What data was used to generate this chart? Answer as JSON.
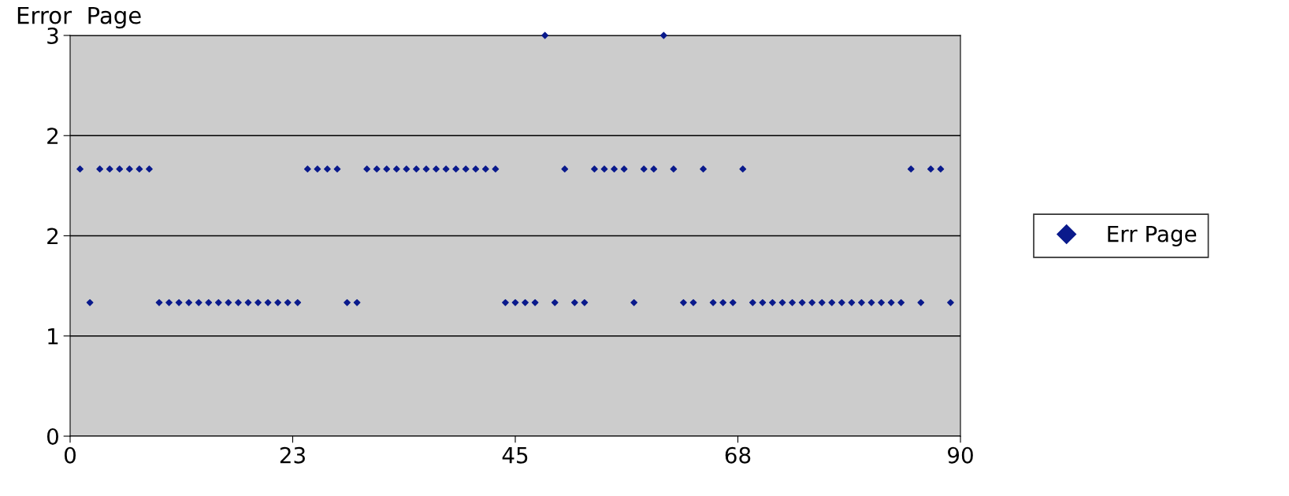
{
  "chart_data": {
    "type": "scatter",
    "title": "Error  Page",
    "x": [
      1,
      2,
      3,
      4,
      5,
      6,
      7,
      8,
      9,
      10,
      11,
      12,
      13,
      14,
      15,
      16,
      17,
      18,
      19,
      20,
      21,
      22,
      23,
      24,
      25,
      26,
      27,
      28,
      29,
      30,
      31,
      32,
      33,
      34,
      35,
      36,
      37,
      38,
      39,
      40,
      41,
      42,
      43,
      44,
      45,
      46,
      47,
      48,
      49,
      50,
      51,
      52,
      53,
      54,
      55,
      56,
      57,
      58,
      59,
      60,
      61,
      62,
      63,
      64,
      65,
      66,
      67,
      68,
      69,
      70,
      71,
      72,
      73,
      74,
      75,
      76,
      77,
      78,
      79,
      80,
      81,
      82,
      83,
      84,
      85,
      86,
      87,
      88,
      89
    ],
    "series": [
      {
        "name": "Err Page",
        "color": "#0a1a8c",
        "values": [
          2,
          1,
          2,
          2,
          2,
          2,
          2,
          2,
          1,
          1,
          1,
          1,
          1,
          1,
          1,
          1,
          1,
          1,
          1,
          1,
          1,
          1,
          1,
          2,
          2,
          2,
          2,
          1,
          1,
          2,
          2,
          2,
          2,
          2,
          2,
          2,
          2,
          2,
          2,
          2,
          2,
          2,
          2,
          1,
          1,
          1,
          1,
          3,
          1,
          2,
          1,
          1,
          2,
          2,
          2,
          2,
          1,
          2,
          2,
          3,
          2,
          1,
          1,
          2,
          1,
          1,
          1,
          2,
          1,
          1,
          1,
          1,
          1,
          1,
          1,
          1,
          1,
          1,
          1,
          1,
          1,
          1,
          1,
          1,
          2,
          1,
          2,
          2,
          1
        ]
      }
    ],
    "xlim": [
      0,
      90
    ],
    "xticks": [
      0,
      {
        "value": 22.5,
        "label": "23"
      },
      45,
      {
        "value": 67.5,
        "label": "68"
      },
      90
    ],
    "ylim": [
      0,
      3
    ],
    "yticks": [
      0,
      {
        "value": 0.75,
        "label": "1"
      },
      {
        "value": 1.5,
        "label": "2"
      },
      {
        "value": 2.25,
        "label": "2"
      },
      3
    ],
    "grid": "y",
    "legend": "right",
    "marker": "diamond"
  }
}
